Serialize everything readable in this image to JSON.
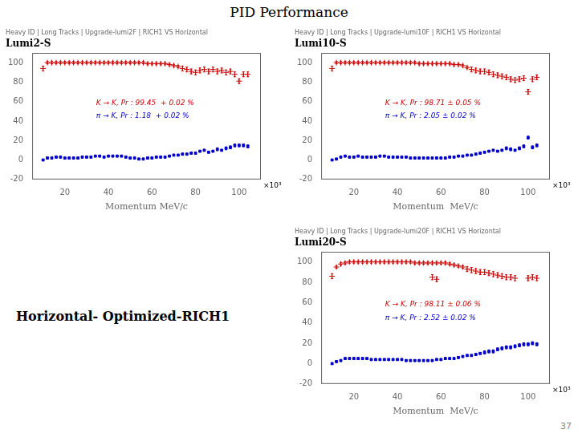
{
  "title": "PID Performance",
  "annotations": [
    "37",
    "Horizontal- Optimized-RICH1"
  ],
  "chart_data": [
    {
      "type": "scatter",
      "title": "Heavy ID | Long Tracks | Upgrade-lumi2F | RICH1 VS Horizontal",
      "subtitle": "Lumi2-S",
      "xlabel": "Momentum MeV/c",
      "annotations": [
        "×10³"
      ],
      "xlim": [
        5,
        110
      ],
      "xticks": [
        20,
        40,
        60,
        80,
        100
      ],
      "ylim": [
        -20,
        110
      ],
      "yticks": [
        -20,
        0,
        20,
        40,
        60,
        80,
        100
      ],
      "grid": false,
      "series": [
        {
          "name": "K → K, Pr : 99.45  + 0.02 %",
          "color": "#cc0000",
          "marker": "plus",
          "x": [
            10,
            12,
            14,
            16,
            18,
            20,
            22,
            24,
            26,
            28,
            30,
            32,
            34,
            36,
            38,
            40,
            42,
            44,
            46,
            48,
            50,
            52,
            54,
            56,
            58,
            60,
            62,
            64,
            66,
            68,
            70,
            72,
            74,
            76,
            78,
            80,
            82,
            84,
            86,
            88,
            90,
            92,
            94,
            96,
            98,
            100,
            102,
            104
          ],
          "values": [
            94,
            100,
            100,
            100,
            100,
            100,
            100,
            100,
            100,
            100,
            100,
            100,
            100,
            100,
            100,
            100,
            100,
            100,
            100,
            100,
            100,
            100,
            100,
            100,
            99,
            99,
            99,
            99,
            99,
            98,
            97,
            96,
            94,
            93,
            91,
            90,
            92,
            93,
            91,
            93,
            91,
            92,
            90,
            91,
            88,
            81,
            88,
            88
          ],
          "errors": [
            2.5,
            1.2,
            1.2,
            1.2,
            1.2,
            1.2,
            1.2,
            1.2,
            1.2,
            1.2,
            1.2,
            1.2,
            1.2,
            1.2,
            1.2,
            1.2,
            1.2,
            1.2,
            1.2,
            1.2,
            1.2,
            1.2,
            1.2,
            1.2,
            1.2,
            1.2,
            1.2,
            1.2,
            1.2,
            1.2,
            1.2,
            1.2,
            2.5,
            2.5,
            2.5,
            2.5,
            2.5,
            2.5,
            2.5,
            2.5,
            2.5,
            2.5,
            2.5,
            2.5,
            2.5,
            2.5,
            2.5,
            2.5
          ]
        },
        {
          "name": "π → K, Pr : 1.18  + 0.02 %",
          "color": "#0000cc",
          "marker": "square",
          "x": [
            10,
            12,
            14,
            16,
            18,
            20,
            22,
            24,
            26,
            28,
            30,
            32,
            34,
            36,
            38,
            40,
            42,
            44,
            46,
            48,
            50,
            52,
            54,
            56,
            58,
            60,
            62,
            64,
            66,
            68,
            70,
            72,
            74,
            76,
            78,
            80,
            82,
            84,
            86,
            88,
            90,
            92,
            94,
            96,
            98,
            100,
            102,
            104
          ],
          "values": [
            0,
            2,
            2,
            3,
            3,
            2,
            2,
            2,
            2,
            3,
            3,
            3,
            4,
            4,
            3,
            4,
            4,
            4,
            4,
            3,
            2,
            2,
            1,
            1,
            2,
            2,
            3,
            3,
            3,
            4,
            5,
            5,
            6,
            6,
            7,
            7,
            9,
            10,
            8,
            9,
            11,
            10,
            12,
            13,
            15,
            15,
            15,
            14
          ],
          "errors": [
            0.8,
            0.8,
            0.8,
            0.8,
            0.8,
            0.8,
            0.8,
            0.8,
            0.8,
            0.8,
            0.8,
            0.8,
            0.8,
            0.8,
            0.8,
            0.8,
            0.8,
            0.8,
            0.8,
            0.8,
            0.8,
            0.8,
            0.8,
            0.8,
            0.8,
            0.8,
            0.8,
            0.8,
            0.8,
            0.8,
            0.8,
            0.8,
            0.8,
            0.8,
            0.8,
            0.8,
            0.8,
            0.8,
            0.8,
            0.8,
            1.5,
            0.8,
            1.5,
            1.5,
            1.5,
            1.5,
            1.5,
            1.5
          ]
        }
      ]
    },
    {
      "type": "scatter",
      "title": "Heavy ID | Long Tracks | Upgrade-lumi10F | RICH1 VS Horizontal",
      "subtitle": "Lumi10-S",
      "xlabel": "Momentum  MeV/c",
      "annotations": [
        "×10³"
      ],
      "xlim": [
        5,
        110
      ],
      "xticks": [
        20,
        40,
        60,
        80,
        100
      ],
      "ylim": [
        -20,
        110
      ],
      "yticks": [
        -20,
        0,
        20,
        40,
        60,
        80,
        100
      ],
      "grid": false,
      "series": [
        {
          "name": "K → K, Pr : 98.71 ± 0.05 %",
          "color": "#cc0000",
          "marker": "plus",
          "x": [
            10,
            12,
            14,
            16,
            18,
            20,
            22,
            24,
            26,
            28,
            30,
            32,
            34,
            36,
            38,
            40,
            42,
            44,
            46,
            48,
            50,
            52,
            54,
            56,
            58,
            60,
            62,
            64,
            66,
            68,
            70,
            72,
            74,
            76,
            78,
            80,
            82,
            84,
            86,
            88,
            90,
            92,
            94,
            96,
            98,
            100,
            102,
            104
          ],
          "values": [
            94,
            100,
            100,
            100,
            100,
            100,
            100,
            100,
            100,
            100,
            100,
            100,
            100,
            100,
            100,
            100,
            100,
            100,
            100,
            100,
            99,
            99,
            99,
            99,
            99,
            99,
            99,
            99,
            98,
            98,
            97,
            95,
            93,
            92,
            91,
            91,
            90,
            88,
            87,
            86,
            85,
            83,
            82,
            83,
            84,
            70,
            83,
            85
          ],
          "errors": [
            2.5,
            1.2,
            1.2,
            1.2,
            1.2,
            1.2,
            1.2,
            1.2,
            1.2,
            1.2,
            1.2,
            1.2,
            1.2,
            1.2,
            1.2,
            1.2,
            1.2,
            1.2,
            1.2,
            1.2,
            1.2,
            1.2,
            1.2,
            1.2,
            1.2,
            1.2,
            1.2,
            1.2,
            1.2,
            1.2,
            1.2,
            1.2,
            2.5,
            2.5,
            2.5,
            2.5,
            2.5,
            2.5,
            2.5,
            2.5,
            2.5,
            2.5,
            2.5,
            2.5,
            2.5,
            2.5,
            2.5,
            2.5
          ]
        },
        {
          "name": "π → K, Pr : 2.05 ± 0.02 %",
          "color": "#0000cc",
          "marker": "square",
          "x": [
            10,
            12,
            14,
            16,
            18,
            20,
            22,
            24,
            26,
            28,
            30,
            32,
            34,
            36,
            38,
            40,
            42,
            44,
            46,
            48,
            50,
            52,
            54,
            56,
            58,
            60,
            62,
            64,
            66,
            68,
            70,
            72,
            74,
            76,
            78,
            80,
            82,
            84,
            86,
            88,
            90,
            92,
            94,
            96,
            98,
            100,
            102,
            104
          ],
          "values": [
            0,
            1,
            3,
            4,
            3,
            3,
            4,
            3,
            3,
            3,
            3,
            4,
            4,
            3,
            3,
            3,
            3,
            3,
            2,
            2,
            2,
            2,
            2,
            2,
            2,
            2,
            2,
            3,
            3,
            4,
            4,
            5,
            5,
            6,
            7,
            8,
            9,
            10,
            9,
            10,
            12,
            11,
            10,
            12,
            14,
            23,
            13,
            15
          ],
          "errors": [
            0.8,
            0.8,
            0.8,
            0.8,
            0.8,
            0.8,
            0.8,
            0.8,
            0.8,
            0.8,
            0.8,
            0.8,
            0.8,
            0.8,
            0.8,
            0.8,
            0.8,
            0.8,
            0.8,
            0.8,
            0.8,
            0.8,
            0.8,
            0.8,
            0.8,
            0.8,
            0.8,
            0.8,
            0.8,
            0.8,
            0.8,
            0.8,
            0.8,
            0.8,
            0.8,
            0.8,
            0.8,
            0.8,
            0.8,
            0.8,
            1.5,
            1.5,
            0.8,
            1.5,
            1.5,
            1.5,
            1.5,
            1.5
          ]
        }
      ]
    },
    {
      "type": "scatter",
      "title": "Heavy ID | Long Tracks | Upgrade-lumi20F | RICH1 VS Horizontal",
      "subtitle": "Lumi20-S",
      "xlabel": "Momentum  MeV/c",
      "annotations": [
        "×10³"
      ],
      "xlim": [
        5,
        110
      ],
      "xticks": [
        20,
        40,
        60,
        80,
        100
      ],
      "ylim": [
        -20,
        110
      ],
      "yticks": [
        -20,
        0,
        20,
        40,
        60,
        80,
        100
      ],
      "grid": false,
      "series": [
        {
          "name": "K → K, Pr : 98.11 ± 0.06 %",
          "color": "#cc0000",
          "marker": "plus",
          "x": [
            10,
            12,
            14,
            16,
            18,
            20,
            22,
            24,
            26,
            28,
            30,
            32,
            34,
            36,
            38,
            40,
            42,
            44,
            46,
            48,
            50,
            52,
            54,
            56,
            58,
            60,
            62,
            64,
            66,
            68,
            70,
            72,
            74,
            76,
            78,
            80,
            82,
            84,
            86,
            88,
            90,
            92,
            94,
            56,
            58,
            100,
            102,
            104
          ],
          "values": [
            86,
            95,
            98,
            99,
            100,
            100,
            100,
            100,
            100,
            100,
            100,
            100,
            100,
            100,
            100,
            100,
            100,
            100,
            100,
            99,
            99,
            99,
            99,
            99,
            99,
            99,
            99,
            98,
            97,
            96,
            95,
            93,
            92,
            91,
            90,
            90,
            89,
            88,
            87,
            86,
            85,
            85,
            84,
            85,
            83,
            84,
            85,
            84
          ],
          "errors": [
            2.5,
            1.2,
            1.2,
            1.2,
            1.2,
            1.2,
            1.2,
            1.2,
            1.2,
            1.2,
            1.2,
            1.2,
            1.2,
            1.2,
            1.2,
            1.2,
            1.2,
            1.2,
            1.2,
            1.2,
            1.2,
            1.2,
            1.2,
            1.2,
            1.2,
            1.2,
            1.2,
            1.2,
            1.2,
            1.2,
            1.2,
            2.5,
            2.5,
            2.5,
            2.5,
            2.5,
            2.5,
            2.5,
            2.5,
            2.5,
            2.5,
            2.5,
            2.5,
            2.5,
            2.5,
            2.5,
            2.5,
            2.5
          ]
        },
        {
          "name": "π → K, Pr : 2.52 ± 0.02 %",
          "color": "#0000cc",
          "marker": "square",
          "x": [
            10,
            12,
            14,
            16,
            18,
            20,
            22,
            24,
            26,
            28,
            30,
            32,
            34,
            36,
            38,
            40,
            42,
            44,
            46,
            48,
            50,
            52,
            54,
            56,
            58,
            60,
            62,
            64,
            66,
            68,
            70,
            72,
            74,
            76,
            78,
            80,
            82,
            84,
            86,
            88,
            90,
            92,
            94,
            96,
            98,
            100,
            102,
            104
          ],
          "values": [
            0,
            2,
            3,
            5,
            5,
            5,
            5,
            5,
            5,
            4,
            4,
            4,
            4,
            4,
            4,
            4,
            4,
            3,
            3,
            3,
            3,
            3,
            3,
            3,
            4,
            4,
            5,
            5,
            5,
            6,
            7,
            8,
            8,
            9,
            10,
            11,
            12,
            12,
            14,
            15,
            16,
            16,
            17,
            18,
            19,
            19,
            20,
            19
          ],
          "errors": [
            0.8,
            0.8,
            0.8,
            0.8,
            0.8,
            0.8,
            0.8,
            0.8,
            0.8,
            0.8,
            0.8,
            0.8,
            0.8,
            0.8,
            0.8,
            0.8,
            0.8,
            0.8,
            0.8,
            0.8,
            0.8,
            0.8,
            0.8,
            0.8,
            0.8,
            0.8,
            0.8,
            0.8,
            0.8,
            0.8,
            0.8,
            0.8,
            0.8,
            0.8,
            0.8,
            1.5,
            1.5,
            1.5,
            1.5,
            1.5,
            1.5,
            1.5,
            1.5,
            1.5,
            1.5,
            1.5,
            1.5,
            1.5
          ]
        }
      ]
    }
  ]
}
